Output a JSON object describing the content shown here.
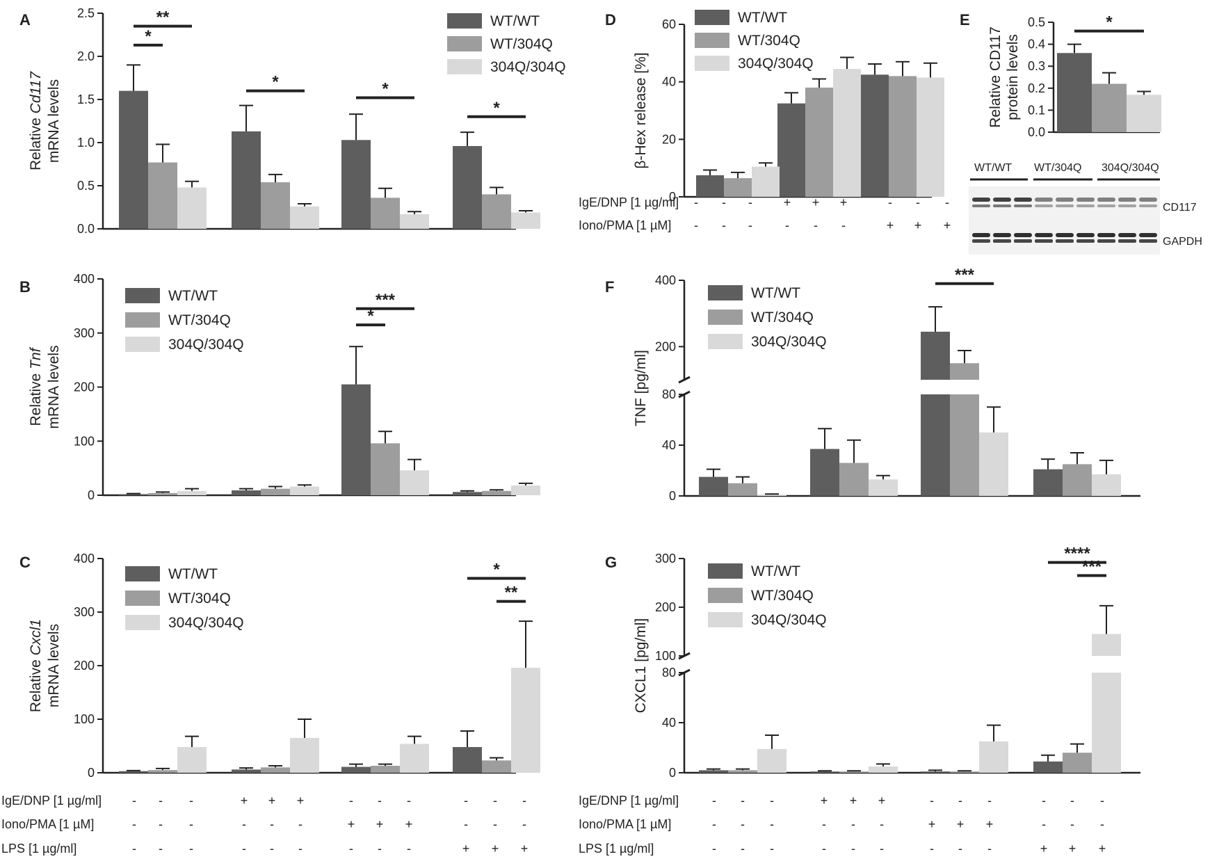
{
  "colors": {
    "wt_wt": "#5e5e5e",
    "wt_304q": "#9d9d9d",
    "q_q": "#d9d9d9",
    "axis": "#222222"
  },
  "legend": [
    "WT/WT",
    "WT/304Q",
    "304Q/304Q"
  ],
  "conditions": {
    "labels": [
      "IgE/DNP [1 µg/ml]",
      "Iono/PMA [1 µM]",
      "LPS [1 µg/ml]"
    ],
    "signs_4groups": [
      [
        "-",
        "-",
        "-",
        "+",
        "+",
        "+",
        "-",
        "-",
        "-",
        "-",
        "-",
        "-"
      ],
      [
        "-",
        "-",
        "-",
        "-",
        "-",
        "-",
        "+",
        "+",
        "+",
        "-",
        "-",
        "-"
      ],
      [
        "-",
        "-",
        "-",
        "-",
        "-",
        "-",
        "-",
        "-",
        "-",
        "+",
        "+",
        "+"
      ]
    ],
    "signs_3groups": [
      [
        "-",
        "-",
        "-",
        "+",
        "+",
        "+",
        "-",
        "-",
        "-"
      ],
      [
        "-",
        "-",
        "-",
        "-",
        "-",
        "-",
        "+",
        "+",
        "+"
      ]
    ]
  },
  "western_blot": {
    "group_labels": [
      "WT/WT",
      "WT/304Q",
      "304Q/304Q"
    ],
    "band_labels": [
      "CD117",
      "GAPDH"
    ]
  },
  "chart_data": [
    {
      "id": "A",
      "panel_label": "A",
      "type": "bar",
      "ylabel_pre": "Relative ",
      "ylabel_italic": "Cd117",
      "ylabel_line2": "mRNA levels",
      "ylim": [
        0,
        2.5
      ],
      "yticks": [
        "0.0",
        "0.5",
        "1.0",
        "1.5",
        "2.0",
        "2.5"
      ],
      "yticks_values": [
        0,
        0.5,
        1.0,
        1.5,
        2.0,
        2.5
      ],
      "series": [
        {
          "name": "WT/WT",
          "values": [
            1.6,
            1.13,
            1.03,
            0.96
          ],
          "errors": [
            0.3,
            0.3,
            0.3,
            0.16
          ]
        },
        {
          "name": "WT/304Q",
          "values": [
            0.77,
            0.54,
            0.36,
            0.4
          ],
          "errors": [
            0.21,
            0.09,
            0.11,
            0.08
          ]
        },
        {
          "name": "304Q/304Q",
          "values": [
            0.48,
            0.26,
            0.17,
            0.19
          ],
          "errors": [
            0.07,
            0.03,
            0.03,
            0.02
          ]
        }
      ],
      "significance": [
        {
          "group": 0,
          "from": 0,
          "to": 1,
          "label": "*",
          "y": 2.13
        },
        {
          "group": 0,
          "from": 0,
          "to": 2,
          "label": "**",
          "y": 2.35
        },
        {
          "group": 1,
          "from": 0,
          "to": 2,
          "label": "*",
          "y": 1.6
        },
        {
          "group": 2,
          "from": 0,
          "to": 2,
          "label": "*",
          "y": 1.52
        },
        {
          "group": 3,
          "from": 0,
          "to": 2,
          "label": "*",
          "y": 1.3
        }
      ]
    },
    {
      "id": "B",
      "panel_label": "B",
      "type": "bar",
      "ylabel_pre": "Relative ",
      "ylabel_italic": "Tnf",
      "ylabel_line2": "mRNA levels",
      "ylim": [
        0,
        400
      ],
      "yticks": [
        "0",
        "100",
        "200",
        "300",
        "400"
      ],
      "yticks_values": [
        0,
        100,
        200,
        300,
        400
      ],
      "series": [
        {
          "name": "WT/WT",
          "values": [
            2,
            9,
            205,
            6
          ],
          "errors": [
            1,
            3,
            70,
            2
          ]
        },
        {
          "name": "WT/304Q",
          "values": [
            4,
            12,
            96,
            8
          ],
          "errors": [
            2,
            4,
            22,
            2
          ]
        },
        {
          "name": "304Q/304Q",
          "values": [
            8,
            16,
            46,
            18
          ],
          "errors": [
            4,
            3,
            20,
            4
          ]
        }
      ],
      "significance": [
        {
          "group": 2,
          "from": 0,
          "to": 1,
          "label": "*",
          "y": 315
        },
        {
          "group": 2,
          "from": 0,
          "to": 2,
          "label": "***",
          "y": 345
        }
      ]
    },
    {
      "id": "C",
      "panel_label": "C",
      "type": "bar",
      "ylabel_pre": "Relative ",
      "ylabel_italic": "Cxcl1",
      "ylabel_line2": "mRNA levels",
      "ylim": [
        0,
        400
      ],
      "yticks": [
        "0",
        "100",
        "200",
        "300",
        "400"
      ],
      "yticks_values": [
        0,
        100,
        200,
        300,
        400
      ],
      "series": [
        {
          "name": "WT/WT",
          "values": [
            3,
            6,
            11,
            48
          ],
          "errors": [
            1,
            3,
            5,
            30
          ]
        },
        {
          "name": "WT/304Q",
          "values": [
            5,
            10,
            13,
            23
          ],
          "errors": [
            3,
            3,
            3,
            5
          ]
        },
        {
          "name": "304Q/304Q",
          "values": [
            48,
            65,
            54,
            196
          ],
          "errors": [
            20,
            35,
            14,
            87
          ]
        }
      ],
      "significance": [
        {
          "group": 3,
          "from": 1,
          "to": 2,
          "label": "**",
          "y": 320
        },
        {
          "group": 3,
          "from": 0,
          "to": 2,
          "label": "*",
          "y": 363
        }
      ]
    },
    {
      "id": "D",
      "panel_label": "D",
      "type": "bar",
      "ylabel": "β-Hex release [%]",
      "ylim": [
        0,
        60
      ],
      "yticks": [
        "0",
        "20",
        "40",
        "60"
      ],
      "yticks_values": [
        0,
        20,
        40,
        60
      ],
      "series": [
        {
          "name": "WT/WT",
          "values": [
            7.5,
            32.5,
            42.5
          ],
          "errors": [
            1.8,
            3.7,
            3.7
          ]
        },
        {
          "name": "WT/304Q",
          "values": [
            6.5,
            38,
            42
          ],
          "errors": [
            2,
            3,
            5
          ]
        },
        {
          "name": "304Q/304Q",
          "values": [
            10.5,
            44.5,
            41.5
          ],
          "errors": [
            1.3,
            4,
            5
          ]
        }
      ],
      "significance": []
    },
    {
      "id": "E",
      "panel_label": "E",
      "type": "bar",
      "ylabel": "Relative CD117",
      "ylabel_line2": "protein levels",
      "ylim": [
        0,
        0.5
      ],
      "yticks": [
        "0.0",
        "0.1",
        "0.2",
        "0.3",
        "0.4",
        "0.5"
      ],
      "yticks_values": [
        0,
        0.1,
        0.2,
        0.3,
        0.4,
        0.5
      ],
      "categories": [
        "WT/WT",
        "WT/304Q",
        "304Q/304Q"
      ],
      "series": [
        {
          "name": "CD117",
          "values": [
            0.36,
            0.22,
            0.17
          ],
          "errors": [
            0.04,
            0.05,
            0.015
          ]
        }
      ],
      "significance": [
        {
          "group": 0,
          "from": 0,
          "to": 2,
          "label": "*",
          "y": 0.46
        }
      ]
    },
    {
      "id": "F",
      "panel_label": "F",
      "type": "bar",
      "ylabel": "TNF [pg/ml]",
      "ylim": [
        0,
        400
      ],
      "axis_break": [
        80,
        100
      ],
      "yticks": [
        "0",
        "40",
        "80",
        "200",
        "400"
      ],
      "yticks_values": [
        0,
        40,
        80,
        200,
        400
      ],
      "series": [
        {
          "name": "WT/WT",
          "values": [
            15,
            37,
            245,
            21
          ],
          "errors": [
            6,
            16,
            75,
            8
          ]
        },
        {
          "name": "WT/304Q",
          "values": [
            10,
            26,
            150,
            25
          ],
          "errors": [
            5,
            18,
            38,
            9
          ]
        },
        {
          "name": "304Q/304Q",
          "values": [
            1,
            13,
            50,
            17
          ],
          "errors": [
            0.5,
            3,
            20,
            11
          ]
        }
      ],
      "significance": [
        {
          "group": 2,
          "from": 0,
          "to": 2,
          "label": "***",
          "y": 390
        }
      ]
    },
    {
      "id": "G",
      "panel_label": "G",
      "type": "bar",
      "ylabel": "CXCL1 [pg/ml]",
      "ylim": [
        0,
        300
      ],
      "axis_break": [
        80,
        100
      ],
      "yticks": [
        "0",
        "40",
        "80",
        "100",
        "200",
        "300"
      ],
      "yticks_values": [
        0,
        40,
        80,
        100,
        200,
        300
      ],
      "series": [
        {
          "name": "WT/WT",
          "values": [
            2,
            1,
            1,
            9
          ],
          "errors": [
            1,
            0.5,
            1,
            5
          ]
        },
        {
          "name": "WT/304Q",
          "values": [
            2,
            1,
            1,
            16
          ],
          "errors": [
            1,
            0.5,
            0.5,
            7
          ]
        },
        {
          "name": "304Q/304Q",
          "values": [
            19,
            5,
            25,
            145
          ],
          "errors": [
            11,
            2,
            13,
            58
          ]
        }
      ],
      "significance": [
        {
          "group": 3,
          "from": 1,
          "to": 2,
          "label": "***",
          "y": 265
        },
        {
          "group": 3,
          "from": 0,
          "to": 2,
          "label": "****",
          "y": 292
        }
      ]
    }
  ]
}
